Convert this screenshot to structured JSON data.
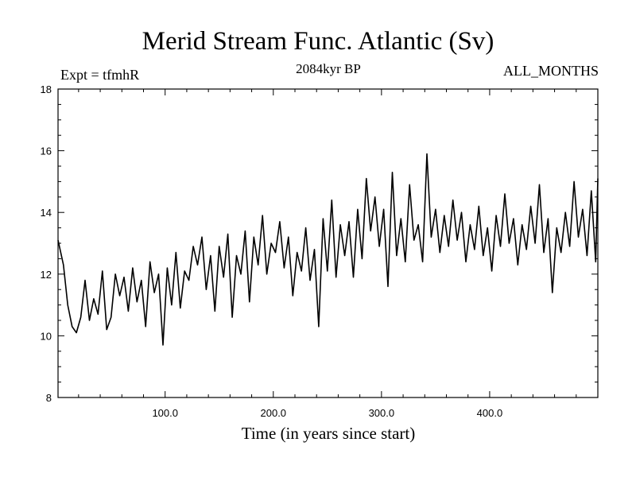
{
  "chart_data": {
    "type": "line",
    "title": "Merid Stream Func. Atlantic (Sv)",
    "subtitle_left": "Expt = tfmhR",
    "subtitle_center": "2084kyr BP",
    "subtitle_right": "ALL_MONTHS",
    "xlabel": "Time (in years since start)",
    "ylabel": "",
    "xlim": [
      1,
      500
    ],
    "ylim": [
      8,
      18
    ],
    "xticks": [
      100,
      200,
      300,
      400
    ],
    "xtick_labels": [
      "100.0",
      "200.0",
      "300.0",
      "400.0"
    ],
    "yticks": [
      8,
      10,
      12,
      14,
      16,
      18
    ],
    "ytick_labels": [
      "8",
      "10",
      "12",
      "14",
      "16",
      "18"
    ],
    "grid": false,
    "line_color": "#000000",
    "series": [
      {
        "name": "Merid Stream Func. Atlantic",
        "x": [
          1,
          6,
          10,
          14,
          18,
          22,
          26,
          30,
          34,
          38,
          42,
          46,
          50,
          54,
          58,
          62,
          66,
          70,
          74,
          78,
          82,
          86,
          90,
          94,
          98,
          102,
          106,
          110,
          114,
          118,
          122,
          126,
          130,
          134,
          138,
          142,
          146,
          150,
          154,
          158,
          162,
          166,
          170,
          174,
          178,
          182,
          186,
          190,
          194,
          198,
          202,
          206,
          210,
          214,
          218,
          222,
          226,
          230,
          234,
          238,
          242,
          246,
          250,
          254,
          258,
          262,
          266,
          270,
          274,
          278,
          282,
          286,
          290,
          294,
          298,
          302,
          306,
          310,
          314,
          318,
          322,
          326,
          330,
          334,
          338,
          342,
          346,
          350,
          354,
          358,
          362,
          366,
          370,
          374,
          378,
          382,
          386,
          390,
          394,
          398,
          402,
          406,
          410,
          414,
          418,
          422,
          426,
          430,
          434,
          438,
          442,
          446,
          450,
          454,
          458,
          462,
          466,
          470,
          474,
          478,
          482,
          486,
          490,
          494,
          498,
          500
        ],
        "values": [
          13.1,
          12.3,
          11.0,
          10.3,
          10.1,
          10.6,
          11.8,
          10.5,
          11.2,
          10.7,
          12.1,
          10.2,
          10.6,
          12.0,
          11.3,
          11.9,
          10.8,
          12.2,
          11.1,
          11.8,
          10.3,
          12.4,
          11.4,
          12.0,
          9.7,
          12.2,
          11.0,
          12.7,
          10.9,
          12.1,
          11.8,
          12.9,
          12.3,
          13.2,
          11.5,
          12.6,
          10.8,
          12.9,
          11.9,
          13.3,
          10.6,
          12.6,
          12.0,
          13.4,
          11.1,
          13.2,
          12.3,
          13.9,
          12.0,
          13.0,
          12.7,
          13.7,
          12.2,
          13.2,
          11.3,
          12.7,
          12.1,
          13.5,
          11.8,
          12.8,
          10.3,
          13.8,
          12.1,
          14.4,
          11.9,
          13.6,
          12.6,
          13.7,
          11.9,
          14.1,
          12.5,
          15.1,
          13.4,
          14.5,
          12.9,
          14.1,
          11.6,
          15.3,
          12.6,
          13.8,
          12.4,
          14.9,
          13.1,
          13.6,
          12.4,
          15.9,
          13.2,
          14.1,
          12.7,
          13.9,
          12.9,
          14.4,
          13.1,
          14.0,
          12.4,
          13.6,
          12.8,
          14.2,
          12.6,
          13.5,
          12.1,
          13.9,
          12.9,
          14.6,
          13.0,
          13.8,
          12.3,
          13.6,
          12.8,
          14.2,
          13.0,
          14.9,
          12.7,
          13.8,
          11.4,
          13.5,
          12.7,
          14.0,
          12.9,
          15.0,
          13.2,
          14.1,
          12.6,
          14.7,
          12.4,
          15.1
        ]
      }
    ]
  }
}
